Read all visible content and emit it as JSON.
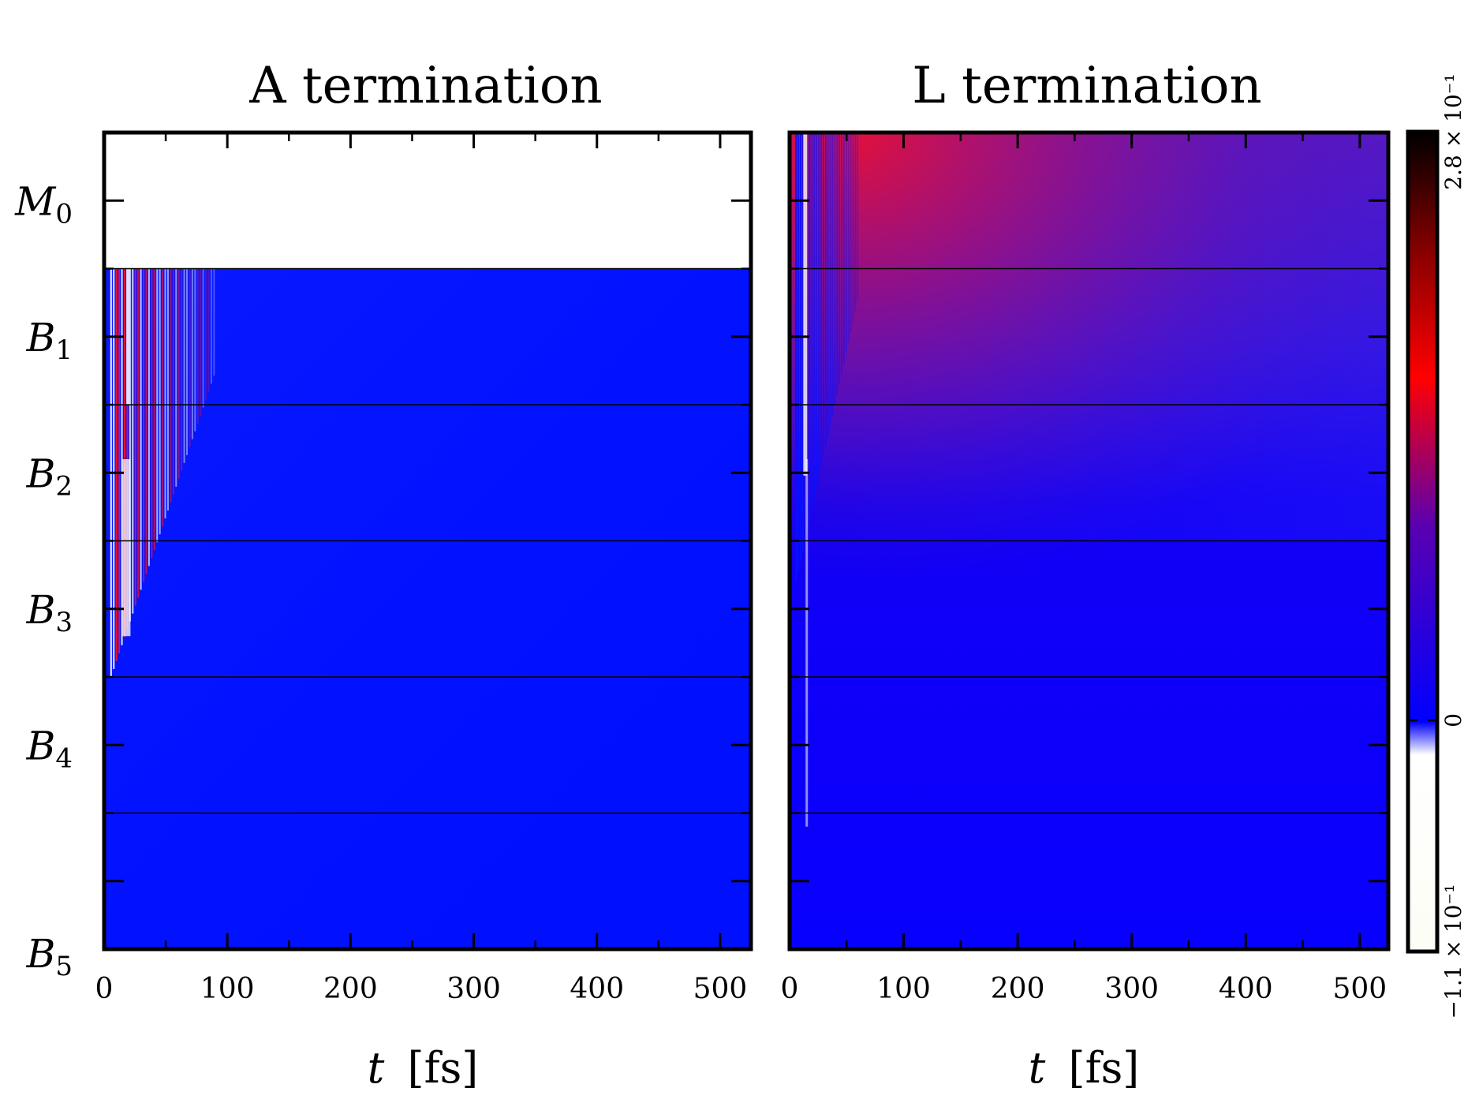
{
  "chart_data": [
    {
      "type": "heatmap",
      "title": "A termination",
      "xlabel": "t [fs]",
      "xlim": [
        0,
        525
      ],
      "xticks": [
        0,
        100,
        200,
        300,
        400,
        500
      ],
      "y_categories": [
        "M0",
        "B1",
        "B2",
        "B3",
        "B4",
        "B5"
      ],
      "grid": false,
      "note_empty_row": "M0",
      "background_value": 0.0,
      "early_oscillation_window_fs": [
        5,
        90
      ]
    },
    {
      "type": "heatmap",
      "title": "L termination",
      "xlabel": "t [fs]",
      "xlim": [
        0,
        525
      ],
      "xticks": [
        0,
        100,
        200,
        300,
        400,
        500
      ],
      "y_categories": [
        "M0",
        "B1",
        "B2",
        "B3",
        "B4",
        "B5"
      ],
      "grid": false,
      "background_value": 0.0,
      "early_oscillation_window_fs": [
        5,
        60
      ]
    }
  ],
  "colorbar": {
    "min": -0.11,
    "max": 0.28,
    "tick_labels": [
      "−1.1 × 10⁻¹",
      "0",
      "2.8 × 10⁻¹"
    ],
    "tick_values": [
      -0.11,
      0,
      0.28
    ],
    "colors": {
      "min": "#fdfdf6",
      "zero": "#0000ff",
      "mid": "#ff0000",
      "max": "#000000"
    }
  },
  "text": {
    "panel_a_title": "A termination",
    "panel_l_title": "L termination",
    "xlabel_var": "t",
    "xlabel_unit": "[fs]",
    "y_labels": [
      {
        "sym": "M",
        "sub": "0"
      },
      {
        "sym": "B",
        "sub": "1"
      },
      {
        "sym": "B",
        "sub": "2"
      },
      {
        "sym": "B",
        "sub": "3"
      },
      {
        "sym": "B",
        "sub": "4"
      },
      {
        "sym": "B",
        "sub": "5"
      }
    ],
    "x_tick_labels": [
      "0",
      "100",
      "200",
      "300",
      "400",
      "500"
    ]
  }
}
